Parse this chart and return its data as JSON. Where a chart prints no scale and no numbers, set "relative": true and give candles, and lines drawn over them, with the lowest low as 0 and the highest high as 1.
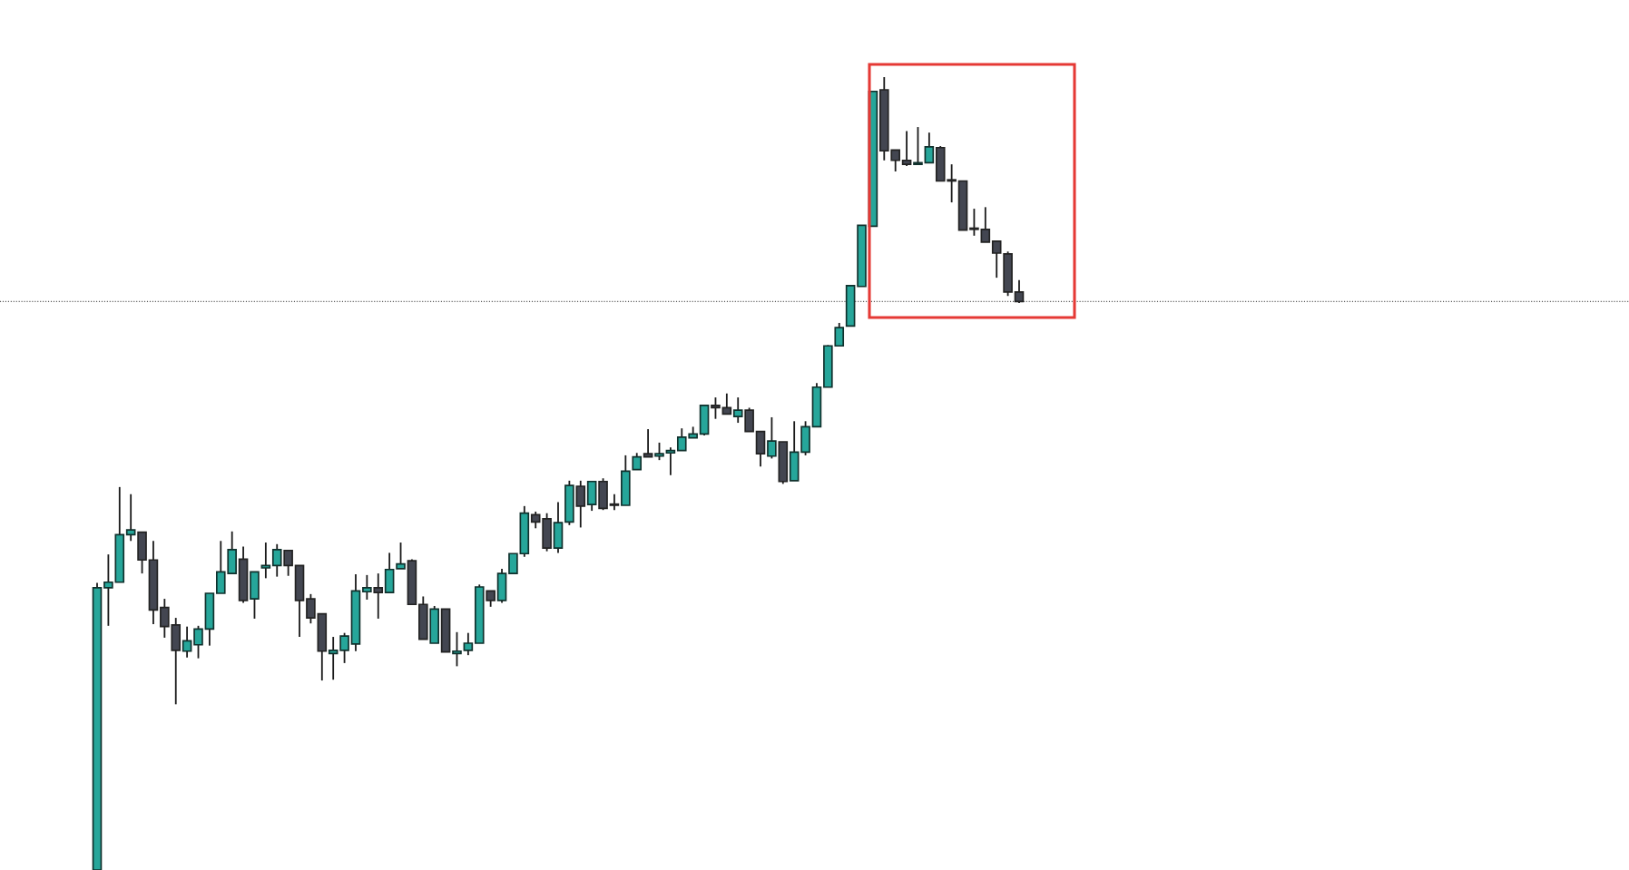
{
  "chart_data": {
    "type": "candlestick",
    "relative": true,
    "categories": [
      null,
      null,
      null,
      null,
      null,
      null,
      null,
      null,
      null,
      null,
      null,
      null,
      null,
      null,
      null,
      null,
      null,
      null,
      null,
      null,
      null,
      null,
      null,
      null,
      null,
      null,
      null,
      null,
      null,
      null,
      null,
      null,
      null,
      null,
      null,
      null,
      null,
      null,
      null,
      null,
      null,
      null,
      null,
      null,
      null,
      null,
      null,
      null,
      null,
      null,
      null,
      null,
      null,
      null,
      null,
      null,
      null,
      null,
      null,
      null,
      null,
      null,
      null,
      null,
      null,
      null,
      null,
      null,
      null,
      null,
      null,
      null,
      null,
      null,
      null,
      null,
      null,
      null,
      null,
      null,
      null,
      null,
      null
    ],
    "ohlc": [
      [
        0,
        0.362,
        0,
        0.356
      ],
      [
        0.356,
        0.398,
        0.308,
        0.363
      ],
      [
        0.363,
        0.483,
        0.363,
        0.423
      ],
      [
        0.423,
        0.474,
        0.415,
        0.429
      ],
      [
        0.426,
        0.426,
        0.374,
        0.391
      ],
      [
        0.391,
        0.415,
        0.31,
        0.328
      ],
      [
        0.331,
        0.342,
        0.293,
        0.307
      ],
      [
        0.309,
        0.318,
        0.209,
        0.277
      ],
      [
        0.276,
        0.307,
        0.268,
        0.289
      ],
      [
        0.284,
        0.308,
        0.267,
        0.304
      ],
      [
        0.304,
        0.349,
        0.283,
        0.349
      ],
      [
        0.349,
        0.415,
        0.349,
        0.376
      ],
      [
        0.374,
        0.427,
        0.374,
        0.404
      ],
      [
        0.392,
        0.408,
        0.337,
        0.34
      ],
      [
        0.342,
        0.376,
        0.317,
        0.376
      ],
      [
        0.381,
        0.413,
        0.368,
        0.384
      ],
      [
        0.384,
        0.411,
        0.37,
        0.404
      ],
      [
        0.403,
        0.403,
        0.371,
        0.384
      ],
      [
        0.384,
        0.384,
        0.294,
        0.34
      ],
      [
        0.342,
        0.348,
        0.311,
        0.318
      ],
      [
        0.323,
        0.323,
        0.239,
        0.276
      ],
      [
        0.273,
        0.294,
        0.24,
        0.277
      ],
      [
        0.277,
        0.299,
        0.261,
        0.295
      ],
      [
        0.285,
        0.373,
        0.276,
        0.352
      ],
      [
        0.351,
        0.372,
        0.341,
        0.356
      ],
      [
        0.356,
        0.374,
        0.317,
        0.35
      ],
      [
        0.35,
        0.4,
        0.35,
        0.379
      ],
      [
        0.38,
        0.413,
        0.38,
        0.386
      ],
      [
        0.39,
        0.392,
        0.335,
        0.335
      ],
      [
        0.335,
        0.345,
        0.291,
        0.291
      ],
      [
        0.286,
        0.333,
        0.286,
        0.329
      ],
      [
        0.329,
        0.329,
        0.275,
        0.275
      ],
      [
        0.273,
        0.3,
        0.257,
        0.276
      ],
      [
        0.277,
        0.299,
        0.271,
        0.286
      ],
      [
        0.286,
        0.36,
        0.286,
        0.357
      ],
      [
        0.352,
        0.352,
        0.332,
        0.34
      ],
      [
        0.34,
        0.38,
        0.337,
        0.374
      ],
      [
        0.374,
        0.399,
        0.374,
        0.399
      ],
      [
        0.399,
        0.459,
        0.395,
        0.45
      ],
      [
        0.448,
        0.452,
        0.431,
        0.439
      ],
      [
        0.443,
        0.45,
        0.402,
        0.406
      ],
      [
        0.406,
        0.464,
        0.4,
        0.438
      ],
      [
        0.439,
        0.491,
        0.435,
        0.485
      ],
      [
        0.484,
        0.491,
        0.432,
        0.459
      ],
      [
        0.461,
        0.49,
        0.453,
        0.49
      ],
      [
        0.49,
        0.494,
        0.454,
        0.456
      ],
      [
        0.46,
        0.474,
        0.454,
        0.46
      ],
      [
        0.46,
        0.523,
        0.46,
        0.503
      ],
      [
        0.505,
        0.526,
        0.505,
        0.521
      ],
      [
        0.525,
        0.556,
        0.521,
        0.521
      ],
      [
        0.522,
        0.539,
        0.517,
        0.525
      ],
      [
        0.526,
        0.533,
        0.498,
        0.529
      ],
      [
        0.529,
        0.557,
        0.529,
        0.546
      ],
      [
        0.545,
        0.559,
        0.545,
        0.55
      ],
      [
        0.55,
        0.586,
        0.548,
        0.586
      ],
      [
        0.586,
        0.596,
        0.569,
        0.583
      ],
      [
        0.583,
        0.601,
        0.575,
        0.575
      ],
      [
        0.572,
        0.596,
        0.564,
        0.58
      ],
      [
        0.58,
        0.583,
        0.553,
        0.553
      ],
      [
        0.553,
        0.553,
        0.509,
        0.525
      ],
      [
        0.522,
        0.571,
        0.519,
        0.541
      ],
      [
        0.54,
        0.54,
        0.487,
        0.49
      ],
      [
        0.491,
        0.566,
        0.491,
        0.527
      ],
      [
        0.527,
        0.566,
        0.523,
        0.559
      ],
      [
        0.559,
        0.614,
        0.559,
        0.609
      ],
      [
        0.609,
        0.662,
        0.609,
        0.661
      ],
      [
        0.661,
        0.69,
        0.661,
        0.684
      ],
      [
        0.686,
        0.737,
        0.686,
        0.737
      ],
      [
        0.736,
        0.813,
        0.736,
        0.813
      ],
      [
        0.812,
        0.982,
        0.812,
        0.982
      ],
      [
        0.984,
        1.0,
        0.895,
        0.907
      ],
      [
        0.908,
        0.908,
        0.881,
        0.895
      ],
      [
        0.895,
        0.932,
        0.888,
        0.89
      ],
      [
        0.89,
        0.937,
        0.89,
        0.892
      ],
      [
        0.892,
        0.93,
        0.892,
        0.912
      ],
      [
        0.911,
        0.913,
        0.869,
        0.869
      ],
      [
        0.869,
        0.89,
        0.842,
        0.869
      ],
      [
        0.869,
        0.869,
        0.807,
        0.807
      ],
      [
        0.808,
        0.834,
        0.8,
        0.808
      ],
      [
        0.808,
        0.836,
        0.792,
        0.792
      ],
      [
        0.793,
        0.794,
        0.747,
        0.778
      ],
      [
        0.777,
        0.78,
        0.724,
        0.729
      ],
      [
        0.729,
        0.744,
        0.715,
        0.717
      ]
    ],
    "colors": [
      "#26a69a",
      "#26a69a",
      "#26a69a",
      "#26a69a",
      "#434651",
      "#434651",
      "#434651",
      "#434651",
      "#26a69a",
      "#26a69a",
      "#26a69a",
      "#26a69a",
      "#26a69a",
      "#434651",
      "#26a69a",
      "#26a69a",
      "#26a69a",
      "#434651",
      "#434651",
      "#434651",
      "#434651",
      "#26a69a",
      "#26a69a",
      "#26a69a",
      "#26a69a",
      "#434651",
      "#26a69a",
      "#26a69a",
      "#434651",
      "#434651",
      "#26a69a",
      "#434651",
      "#26a69a",
      "#26a69a",
      "#26a69a",
      "#434651",
      "#26a69a",
      "#26a69a",
      "#26a69a",
      "#434651",
      "#434651",
      "#26a69a",
      "#26a69a",
      "#434651",
      "#26a69a",
      "#434651",
      "#434651",
      "#26a69a",
      "#26a69a",
      "#434651",
      "#26a69a",
      "#26a69a",
      "#26a69a",
      "#26a69a",
      "#26a69a",
      "#434651",
      "#434651",
      "#26a69a",
      "#434651",
      "#434651",
      "#26a69a",
      "#434651",
      "#26a69a",
      "#26a69a",
      "#26a69a",
      "#26a69a",
      "#26a69a",
      "#26a69a",
      "#26a69a",
      "#26a69a",
      "#434651",
      "#434651",
      "#434651",
      "#26a69a",
      "#26a69a",
      "#434651",
      "#434651",
      "#434651",
      "#434651",
      "#434651",
      "#434651",
      "#434651",
      "#434651"
    ],
    "ref_lines": [
      {
        "axis": "y",
        "value": 0.717,
        "line_style": "dotted",
        "color": "#555555"
      }
    ],
    "tick_labels": false
  }
}
